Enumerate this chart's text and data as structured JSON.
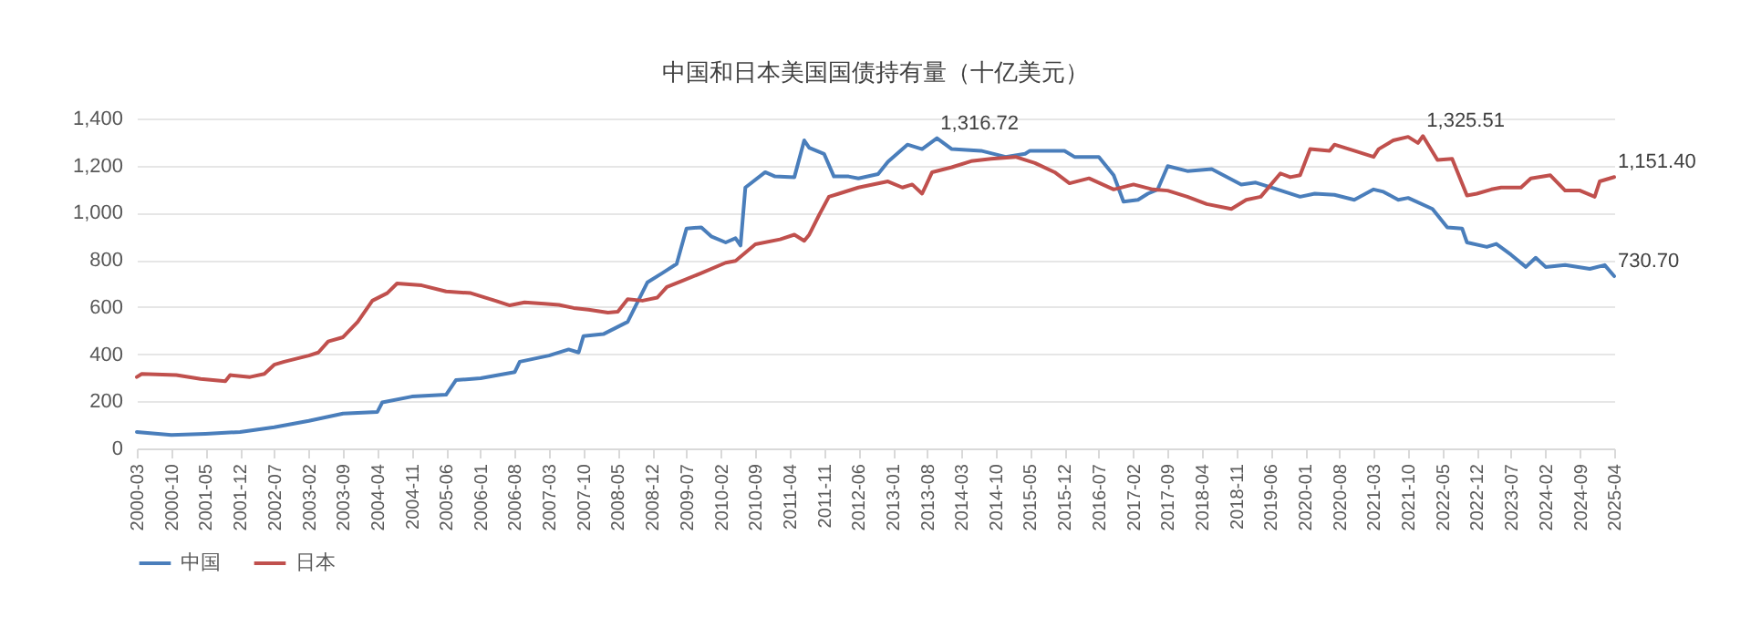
{
  "chart_data": {
    "type": "line",
    "title": "中国和日本美国国债持有量（十亿美元）",
    "xlim": [
      "2000-03",
      "2025-04"
    ],
    "xticks": [
      "2000-03",
      "2000-10",
      "2001-05",
      "2001-12",
      "2002-07",
      "2003-02",
      "2003-09",
      "2004-04",
      "2004-11",
      "2005-06",
      "2006-01",
      "2006-08",
      "2007-03",
      "2007-10",
      "2008-05",
      "2008-12",
      "2009-07",
      "2010-02",
      "2010-09",
      "2011-04",
      "2011-11",
      "2012-06",
      "2013-01",
      "2013-08",
      "2014-03",
      "2014-10",
      "2015-05",
      "2015-12",
      "2016-07",
      "2017-02",
      "2017-09",
      "2018-04",
      "2018-11",
      "2019-06",
      "2020-01",
      "2020-08",
      "2021-03",
      "2021-10",
      "2022-05",
      "2022-12",
      "2023-07",
      "2024-02",
      "2024-09",
      "2025-04"
    ],
    "ylim": [
      0,
      1400
    ],
    "yticks": [
      0,
      200,
      400,
      600,
      800,
      {
        "value": 1000,
        "label": "1,000"
      },
      {
        "value": 1200,
        "label": "1,200"
      },
      {
        "value": 1400,
        "label": "1,400"
      }
    ],
    "grid": "y",
    "legend": "bottom",
    "line_style": "solid",
    "marker": "none",
    "series": [
      {
        "name": "中国",
        "color": "#4a7ebb",
        "x": [
          "2000-03",
          "2000-10",
          "2001-05",
          "2001-12",
          "2002-07",
          "2003-02",
          "2003-09",
          "2004-04",
          "2004-05",
          "2004-11",
          "2005-06",
          "2005-08",
          "2006-01",
          "2006-08",
          "2006-09",
          "2007-03",
          "2007-07",
          "2007-09",
          "2007-10",
          "2008-02",
          "2008-07",
          "2008-11",
          "2009-02",
          "2009-05",
          "2009-07",
          "2009-10",
          "2009-12",
          "2010-03",
          "2010-05",
          "2010-06",
          "2010-07",
          "2010-11",
          "2011-01",
          "2011-05",
          "2011-07",
          "2011-08",
          "2011-11",
          "2012-01",
          "2012-04",
          "2012-06",
          "2012-10",
          "2012-12",
          "2013-04",
          "2013-07",
          "2013-10",
          "2014-01",
          "2014-07",
          "2014-12",
          "2015-04",
          "2015-05",
          "2015-12",
          "2016-02",
          "2016-07",
          "2016-10",
          "2016-12",
          "2017-03",
          "2017-05",
          "2017-07",
          "2017-09",
          "2018-01",
          "2018-06",
          "2018-12",
          "2019-03",
          "2019-07",
          "2019-12",
          "2020-03",
          "2020-07",
          "2020-11",
          "2021-03",
          "2021-05",
          "2021-08",
          "2021-10",
          "2022-03",
          "2022-06",
          "2022-09",
          "2022-10",
          "2023-02",
          "2023-04",
          "2023-07",
          "2023-10",
          "2023-12",
          "2024-02",
          "2024-06",
          "2024-11",
          "2025-02",
          "2025-04"
        ],
        "values": [
          70,
          57,
          62,
          70,
          90,
          117,
          148,
          155,
          195,
          220,
          228,
          290,
          298,
          324,
          368,
          394,
          420,
          407,
          477,
          485,
          537,
          705,
          744,
          783,
          933,
          938,
          900,
          874,
          892,
          861,
          1107,
          1172,
          1154,
          1151,
          1307,
          1276,
          1250,
          1154,
          1154,
          1146,
          1164,
          1216,
          1289,
          1270,
          1316.72,
          1270,
          1263,
          1237,
          1250,
          1263,
          1263,
          1237,
          1237,
          1159,
          1047,
          1055,
          1081,
          1099,
          1198,
          1177,
          1185,
          1120,
          1128,
          1102,
          1068,
          1081,
          1076,
          1055,
          1099,
          1089,
          1055,
          1063,
          1016,
          938,
          933,
          874,
          855,
          868,
          822,
          770,
          809,
          770,
          778,
          762,
          778,
          730.7
        ],
        "value_labels": [
          null,
          null,
          null,
          null,
          null,
          null,
          null,
          null,
          null,
          null,
          null,
          null,
          null,
          null,
          null,
          null,
          null,
          null,
          null,
          null,
          null,
          null,
          null,
          null,
          null,
          null,
          null,
          null,
          null,
          null,
          null,
          null,
          null,
          null,
          null,
          null,
          null,
          null,
          null,
          null,
          null,
          null,
          null,
          null,
          "1,316.72",
          null,
          null,
          null,
          null,
          null,
          null,
          null,
          null,
          null,
          null,
          null,
          null,
          null,
          null,
          null,
          null,
          null,
          null,
          null,
          null,
          null,
          null,
          null,
          null,
          null,
          null,
          null,
          null,
          null,
          null,
          null,
          null,
          null,
          null,
          null,
          null,
          null,
          null,
          null,
          null,
          "730.70"
        ]
      },
      {
        "name": "日本",
        "color": "#c0504d",
        "x": [
          "2000-03",
          "2000-04",
          "2000-11",
          "2001-04",
          "2001-09",
          "2001-10",
          "2002-02",
          "2002-05",
          "2002-07",
          "2002-09",
          "2003-02",
          "2003-04",
          "2003-06",
          "2003-09",
          "2003-12",
          "2004-03",
          "2004-06",
          "2004-08",
          "2005-01",
          "2005-06",
          "2005-11",
          "2006-04",
          "2006-07",
          "2006-10",
          "2007-02",
          "2007-05",
          "2007-08",
          "2007-11",
          "2008-03",
          "2008-05",
          "2008-07",
          "2008-10",
          "2009-01",
          "2009-03",
          "2009-06",
          "2009-10",
          "2010-03",
          "2010-05",
          "2010-09",
          "2011-02",
          "2011-05",
          "2011-07",
          "2011-08",
          "2011-10",
          "2011-12",
          "2012-02",
          "2012-06",
          "2012-12",
          "2013-03",
          "2013-05",
          "2013-07",
          "2013-09",
          "2014-01",
          "2014-05",
          "2014-09",
          "2015-02",
          "2015-06",
          "2015-10",
          "2016-01",
          "2016-05",
          "2016-10",
          "2017-02",
          "2017-06",
          "2017-09",
          "2018-01",
          "2018-05",
          "2018-10",
          "2019-01",
          "2019-04",
          "2019-08",
          "2019-10",
          "2019-12",
          "2020-02",
          "2020-06",
          "2020-07",
          "2020-11",
          "2021-03",
          "2021-04",
          "2021-07",
          "2021-10",
          "2021-12",
          "2022-01",
          "2022-04",
          "2022-07",
          "2022-10",
          "2022-12",
          "2023-03",
          "2023-05",
          "2023-09",
          "2023-11",
          "2024-03",
          "2024-06",
          "2024-09",
          "2024-12",
          "2025-01",
          "2025-04"
        ],
        "values": [
          303,
          316,
          311,
          295,
          285,
          311,
          303,
          316,
          355,
          368,
          394,
          407,
          454,
          472,
          537,
          627,
          659,
          700,
          692,
          666,
          659,
          627,
          607,
          620,
          614,
          609,
          596,
          589,
          576,
          580,
          633,
          627,
          640,
          685,
          710,
          744,
          788,
          796,
          866,
          887,
          907,
          881,
          907,
          990,
          1068,
          1081,
          1107,
          1133,
          1107,
          1120,
          1081,
          1172,
          1193,
          1219,
          1229,
          1237,
          1211,
          1172,
          1125,
          1146,
          1099,
          1120,
          1099,
          1094,
          1068,
          1037,
          1016,
          1055,
          1068,
          1167,
          1151,
          1159,
          1270,
          1263,
          1289,
          1263,
          1237,
          1270,
          1307,
          1322,
          1296,
          1325.51,
          1224,
          1229,
          1073,
          1081,
          1099,
          1107,
          1107,
          1146,
          1159,
          1094,
          1094,
          1068,
          1133,
          1151.4
        ],
        "value_labels": [
          null,
          null,
          null,
          null,
          null,
          null,
          null,
          null,
          null,
          null,
          null,
          null,
          null,
          null,
          null,
          null,
          null,
          null,
          null,
          null,
          null,
          null,
          null,
          null,
          null,
          null,
          null,
          null,
          null,
          null,
          null,
          null,
          null,
          null,
          null,
          null,
          null,
          null,
          null,
          null,
          null,
          null,
          null,
          null,
          null,
          null,
          null,
          null,
          null,
          null,
          null,
          null,
          null,
          null,
          null,
          null,
          null,
          null,
          null,
          null,
          null,
          null,
          null,
          null,
          null,
          null,
          null,
          null,
          null,
          null,
          null,
          null,
          null,
          null,
          null,
          null,
          null,
          null,
          null,
          null,
          null,
          "1,325.51",
          null,
          null,
          null,
          null,
          null,
          null,
          null,
          null,
          null,
          null,
          null,
          null,
          null,
          "1,151.40"
        ]
      }
    ]
  }
}
